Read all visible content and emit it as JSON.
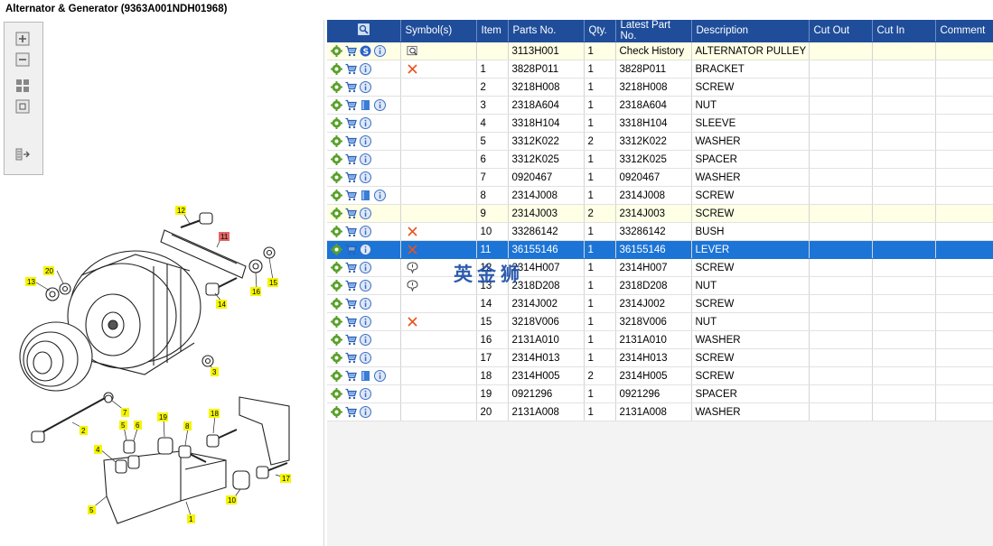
{
  "window_title": "Alternator & Generator (9363A001NDH01968)",
  "toolbar": [
    "zoom-in-icon",
    "zoom-out-icon",
    "fit-page-icon",
    "actual-size-icon",
    "export-icon"
  ],
  "diagram_labels": [
    "12",
    "11",
    "15",
    "16",
    "20",
    "13",
    "14",
    "3",
    "7",
    "2",
    "5",
    "6",
    "4",
    "19",
    "8",
    "18",
    "17",
    "10",
    "1",
    "5"
  ],
  "columns": [
    "",
    "Symbol(s)",
    "Item",
    "Parts No.",
    "Qty.",
    "Latest Part No.",
    "Description",
    "Cut Out",
    "Cut In",
    "Comment"
  ],
  "rows": [
    {
      "icons": [
        "gear",
        "cart",
        "supersession",
        "info"
      ],
      "symbol": "history",
      "item": "",
      "part": "3113H001",
      "qty": "1",
      "latest": "Check History",
      "desc": "ALTERNATOR PULLEY",
      "style": "hl"
    },
    {
      "icons": [
        "gear",
        "cart",
        "info"
      ],
      "symbol": "cross",
      "item": "1",
      "part": "3828P011",
      "qty": "1",
      "latest": "3828P011",
      "desc": "BRACKET",
      "style": ""
    },
    {
      "icons": [
        "gear",
        "cart",
        "info"
      ],
      "symbol": "",
      "item": "2",
      "part": "3218H008",
      "qty": "1",
      "latest": "3218H008",
      "desc": "SCREW",
      "style": ""
    },
    {
      "icons": [
        "gear",
        "cart",
        "book",
        "info"
      ],
      "symbol": "",
      "item": "3",
      "part": "2318A604",
      "qty": "1",
      "latest": "2318A604",
      "desc": "NUT",
      "style": ""
    },
    {
      "icons": [
        "gear",
        "cart",
        "info"
      ],
      "symbol": "",
      "item": "4",
      "part": "3318H104",
      "qty": "1",
      "latest": "3318H104",
      "desc": "SLEEVE",
      "style": ""
    },
    {
      "icons": [
        "gear",
        "cart",
        "info"
      ],
      "symbol": "",
      "item": "5",
      "part": "3312K022",
      "qty": "2",
      "latest": "3312K022",
      "desc": "WASHER",
      "style": ""
    },
    {
      "icons": [
        "gear",
        "cart",
        "info"
      ],
      "symbol": "",
      "item": "6",
      "part": "3312K025",
      "qty": "1",
      "latest": "3312K025",
      "desc": "SPACER",
      "style": ""
    },
    {
      "icons": [
        "gear",
        "cart",
        "info"
      ],
      "symbol": "",
      "item": "7",
      "part": "0920467",
      "qty": "1",
      "latest": "0920467",
      "desc": "WASHER",
      "style": ""
    },
    {
      "icons": [
        "gear",
        "cart",
        "book",
        "info"
      ],
      "symbol": "",
      "item": "8",
      "part": "2314J008",
      "qty": "1",
      "latest": "2314J008",
      "desc": "SCREW",
      "style": ""
    },
    {
      "icons": [
        "gear",
        "cart",
        "info"
      ],
      "symbol": "",
      "item": "9",
      "part": "2314J003",
      "qty": "2",
      "latest": "2314J003",
      "desc": "SCREW",
      "style": "hl"
    },
    {
      "icons": [
        "gear",
        "cart",
        "info"
      ],
      "symbol": "cross",
      "item": "10",
      "part": "33286142",
      "qty": "1",
      "latest": "33286142",
      "desc": "BUSH",
      "style": ""
    },
    {
      "icons": [
        "gear",
        "cart",
        "info"
      ],
      "symbol": "cross",
      "item": "11",
      "part": "36155146",
      "qty": "1",
      "latest": "36155146",
      "desc": "LEVER",
      "style": "sel"
    },
    {
      "icons": [
        "gear",
        "cart",
        "info"
      ],
      "symbol": "balloon",
      "item": "12",
      "part": "2314H007",
      "qty": "1",
      "latest": "2314H007",
      "desc": "SCREW",
      "style": ""
    },
    {
      "icons": [
        "gear",
        "cart",
        "info"
      ],
      "symbol": "balloon",
      "item": "13",
      "part": "2318D208",
      "qty": "1",
      "latest": "2318D208",
      "desc": "NUT",
      "style": ""
    },
    {
      "icons": [
        "gear",
        "cart",
        "info"
      ],
      "symbol": "",
      "item": "14",
      "part": "2314J002",
      "qty": "1",
      "latest": "2314J002",
      "desc": "SCREW",
      "style": ""
    },
    {
      "icons": [
        "gear",
        "cart",
        "info"
      ],
      "symbol": "cross",
      "item": "15",
      "part": "3218V006",
      "qty": "1",
      "latest": "3218V006",
      "desc": "NUT",
      "style": ""
    },
    {
      "icons": [
        "gear",
        "cart",
        "info"
      ],
      "symbol": "",
      "item": "16",
      "part": "2131A010",
      "qty": "1",
      "latest": "2131A010",
      "desc": "WASHER",
      "style": ""
    },
    {
      "icons": [
        "gear",
        "cart",
        "info"
      ],
      "symbol": "",
      "item": "17",
      "part": "2314H013",
      "qty": "1",
      "latest": "2314H013",
      "desc": "SCREW",
      "style": ""
    },
    {
      "icons": [
        "gear",
        "cart",
        "book",
        "info"
      ],
      "symbol": "",
      "item": "18",
      "part": "2314H005",
      "qty": "2",
      "latest": "2314H005",
      "desc": "SCREW",
      "style": ""
    },
    {
      "icons": [
        "gear",
        "cart",
        "info"
      ],
      "symbol": "",
      "item": "19",
      "part": "0921296",
      "qty": "1",
      "latest": "0921296",
      "desc": "SPACER",
      "style": ""
    },
    {
      "icons": [
        "gear",
        "cart",
        "info"
      ],
      "symbol": "",
      "item": "20",
      "part": "2131A008",
      "qty": "1",
      "latest": "2131A008",
      "desc": "WASHER",
      "style": ""
    }
  ],
  "watermark": "英金狮",
  "colors": {
    "header": "#1f4d9a",
    "selected": "#1c74d6",
    "highlight": "#ffffe6",
    "callout": "#f5f500",
    "callout_active": "#e06666"
  }
}
